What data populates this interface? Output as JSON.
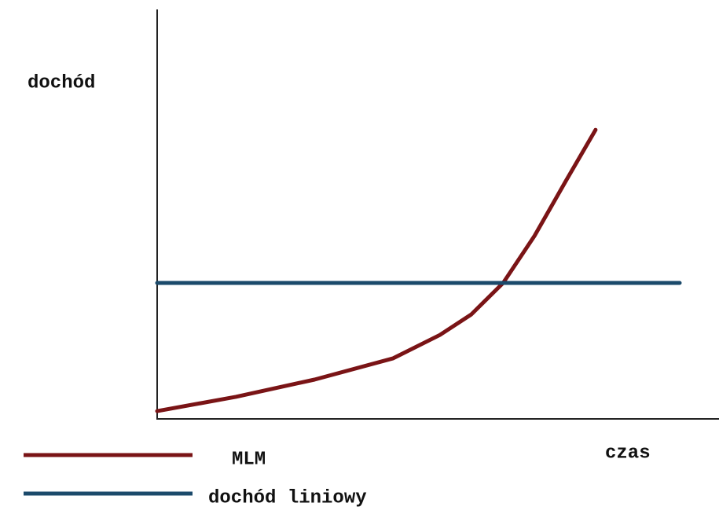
{
  "chart_data": {
    "type": "line",
    "y_label": "dochód",
    "x_label": "czas",
    "xlim": [
      0,
      100
    ],
    "ylim": [
      0,
      100
    ],
    "series": [
      {
        "name": "MLM",
        "color": "#7a1416",
        "x": [
          0,
          14.3,
          28.6,
          42.9,
          51.4,
          57.1,
          62.9,
          68.6,
          74.3,
          79.7
        ],
        "values": [
          1.9,
          5.4,
          9.6,
          14.8,
          20.5,
          25.5,
          33.2,
          44.7,
          58.1,
          70.6
        ]
      },
      {
        "name": "dochód liniowy",
        "color": "#1b4a6b",
        "x": [
          0,
          95
        ],
        "values": [
          33.2,
          33.2
        ]
      }
    ]
  }
}
